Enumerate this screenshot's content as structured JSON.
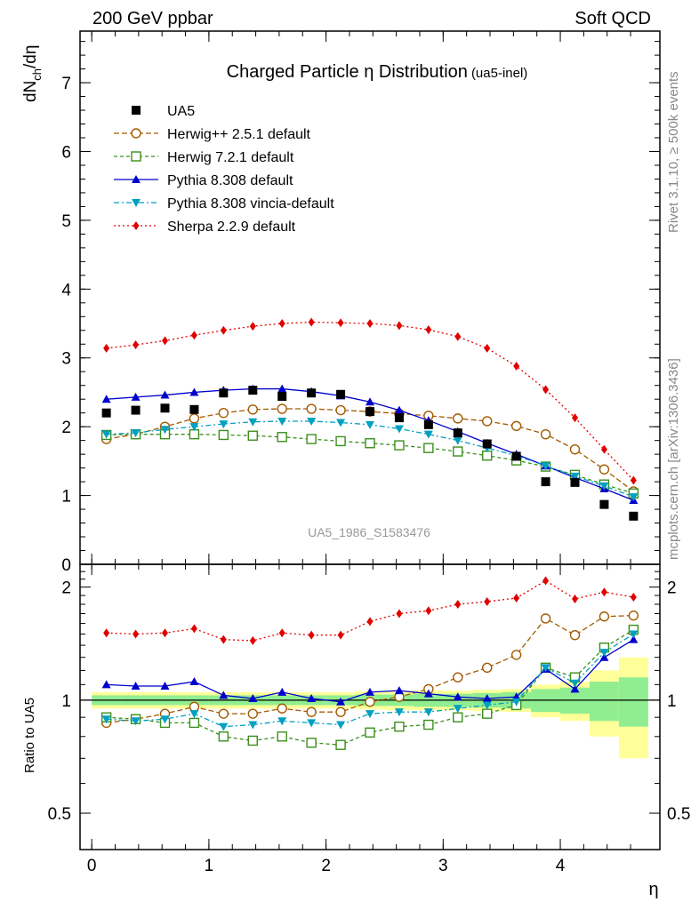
{
  "header": {
    "left": "200 GeV ppbar",
    "right": "Soft QCD"
  },
  "side_text": {
    "rivet": "Rivet 3.1.10, ≥ 500k events",
    "mcplots": "mcplots.cern.ch [arXiv:1306.3436]"
  },
  "watermark": "UA5_1986_S1583476",
  "title": {
    "main_a": "Charged Particle ",
    "eta": "η",
    "main_b": " Distribution",
    "sub": "(ua5-inel)"
  },
  "axes": {
    "ylabel_top": "dN_ch/dη",
    "ylabel_ratio": "Ratio to UA5",
    "xlabel": "η"
  },
  "colors": {
    "data": "#000000",
    "herwigpp": "#a35a00",
    "herwig7": "#3b8f1c",
    "pythia": "#0000cc",
    "vincia": "#00a0c0",
    "sherpa": "#e00000",
    "band_inner": "#90ee90",
    "band_outer": "#ffff99"
  },
  "chart_data": {
    "type": "line",
    "title": "Charged Particle η Distribution (ua5-inel)",
    "xlabel": "η",
    "ylabel": "dN_ch/dη",
    "xlim": [
      -0.1,
      4.85
    ],
    "ylim": [
      0,
      7.75
    ],
    "ratio_ylim": [
      0.4,
      2.3
    ],
    "x_ticks": [
      "0",
      "1",
      "2",
      "3",
      "4"
    ],
    "y_ticks": [
      "0",
      "1",
      "2",
      "3",
      "4",
      "5",
      "6",
      "7"
    ],
    "ratio_y_ticks": [
      "0.5",
      "1",
      "2"
    ],
    "x": [
      0.125,
      0.375,
      0.625,
      0.875,
      1.125,
      1.375,
      1.625,
      1.875,
      2.125,
      2.375,
      2.625,
      2.875,
      3.125,
      3.375,
      3.625,
      3.875,
      4.125,
      4.375,
      4.625
    ],
    "data": {
      "name": "UA5",
      "values": [
        2.2,
        2.24,
        2.27,
        2.25,
        2.49,
        2.53,
        2.44,
        2.49,
        2.47,
        2.22,
        2.13,
        2.03,
        1.91,
        1.75,
        1.57,
        1.2,
        1.19,
        0.87,
        0.7
      ]
    },
    "band": {
      "inner": [
        0.03,
        0.03,
        0.03,
        0.03,
        0.03,
        0.03,
        0.03,
        0.03,
        0.03,
        0.035,
        0.035,
        0.04,
        0.04,
        0.045,
        0.05,
        0.07,
        0.08,
        0.12,
        0.15
      ],
      "outer": [
        0.05,
        0.05,
        0.05,
        0.05,
        0.05,
        0.05,
        0.05,
        0.05,
        0.05,
        0.055,
        0.06,
        0.06,
        0.06,
        0.065,
        0.07,
        0.1,
        0.12,
        0.2,
        0.3
      ]
    },
    "series": [
      {
        "name": "Herwig++ 2.5.1 default",
        "key": "herwigpp",
        "marker": "circle-open",
        "dash": "6,3",
        "values": [
          1.82,
          1.89,
          2.0,
          2.12,
          2.2,
          2.25,
          2.26,
          2.26,
          2.24,
          2.22,
          2.19,
          2.16,
          2.12,
          2.08,
          2.01,
          1.89,
          1.67,
          1.38,
          1.06
        ],
        "ratio": [
          0.87,
          0.89,
          0.92,
          0.96,
          0.92,
          0.92,
          0.95,
          0.93,
          0.93,
          0.99,
          1.02,
          1.07,
          1.15,
          1.22,
          1.32,
          1.65,
          1.49,
          1.67,
          1.68
        ]
      },
      {
        "name": "Herwig 7.2.1 default",
        "key": "herwig7",
        "marker": "square-open",
        "dash": "4,3",
        "values": [
          1.88,
          1.89,
          1.89,
          1.89,
          1.88,
          1.87,
          1.85,
          1.82,
          1.79,
          1.76,
          1.73,
          1.69,
          1.64,
          1.58,
          1.51,
          1.42,
          1.3,
          1.16,
          1.03
        ],
        "ratio": [
          0.9,
          0.89,
          0.87,
          0.87,
          0.8,
          0.78,
          0.8,
          0.77,
          0.76,
          0.82,
          0.85,
          0.86,
          0.9,
          0.92,
          0.97,
          1.22,
          1.15,
          1.38,
          1.54
        ]
      },
      {
        "name": "Pythia 8.308 default",
        "key": "pythia",
        "marker": "triangle-up",
        "dash": "",
        "values": [
          2.4,
          2.43,
          2.46,
          2.5,
          2.53,
          2.55,
          2.55,
          2.51,
          2.45,
          2.36,
          2.24,
          2.09,
          1.93,
          1.76,
          1.6,
          1.43,
          1.26,
          1.1,
          0.93
        ],
        "ratio": [
          1.1,
          1.09,
          1.09,
          1.12,
          1.03,
          1.01,
          1.05,
          1.01,
          0.99,
          1.05,
          1.06,
          1.04,
          1.02,
          1.01,
          1.02,
          1.21,
          1.07,
          1.3,
          1.45
        ]
      },
      {
        "name": "Pythia 8.308 vincia-default",
        "key": "vincia",
        "marker": "triangle-down",
        "dash": "6,3,2,3",
        "values": [
          1.89,
          1.91,
          1.96,
          2.0,
          2.04,
          2.07,
          2.08,
          2.08,
          2.06,
          2.03,
          1.97,
          1.89,
          1.8,
          1.69,
          1.58,
          1.43,
          1.28,
          1.14,
          0.98
        ],
        "ratio": [
          0.89,
          0.88,
          0.89,
          0.92,
          0.85,
          0.86,
          0.88,
          0.87,
          0.86,
          0.92,
          0.93,
          0.93,
          0.95,
          0.97,
          0.99,
          1.22,
          1.11,
          1.34,
          1.5
        ]
      },
      {
        "name": "Sherpa 2.2.9 default",
        "key": "sherpa",
        "marker": "diamond",
        "dash": "2,3",
        "values": [
          3.14,
          3.19,
          3.25,
          3.33,
          3.4,
          3.46,
          3.5,
          3.52,
          3.51,
          3.5,
          3.47,
          3.41,
          3.31,
          3.14,
          2.88,
          2.54,
          2.13,
          1.67,
          1.22
        ],
        "ratio": [
          1.51,
          1.5,
          1.51,
          1.55,
          1.45,
          1.44,
          1.51,
          1.49,
          1.49,
          1.62,
          1.7,
          1.73,
          1.8,
          1.83,
          1.87,
          2.08,
          1.86,
          1.94,
          1.88
        ]
      }
    ],
    "legend": [
      {
        "key": "data",
        "label": "UA5"
      },
      {
        "key": "herwigpp",
        "label": "Herwig++ 2.5.1 default"
      },
      {
        "key": "herwig7",
        "label": "Herwig 7.2.1 default"
      },
      {
        "key": "pythia",
        "label": "Pythia 8.308 default"
      },
      {
        "key": "vincia",
        "label": "Pythia 8.308 vincia-default"
      },
      {
        "key": "sherpa",
        "label": "Sherpa 2.2.9 default"
      }
    ]
  }
}
